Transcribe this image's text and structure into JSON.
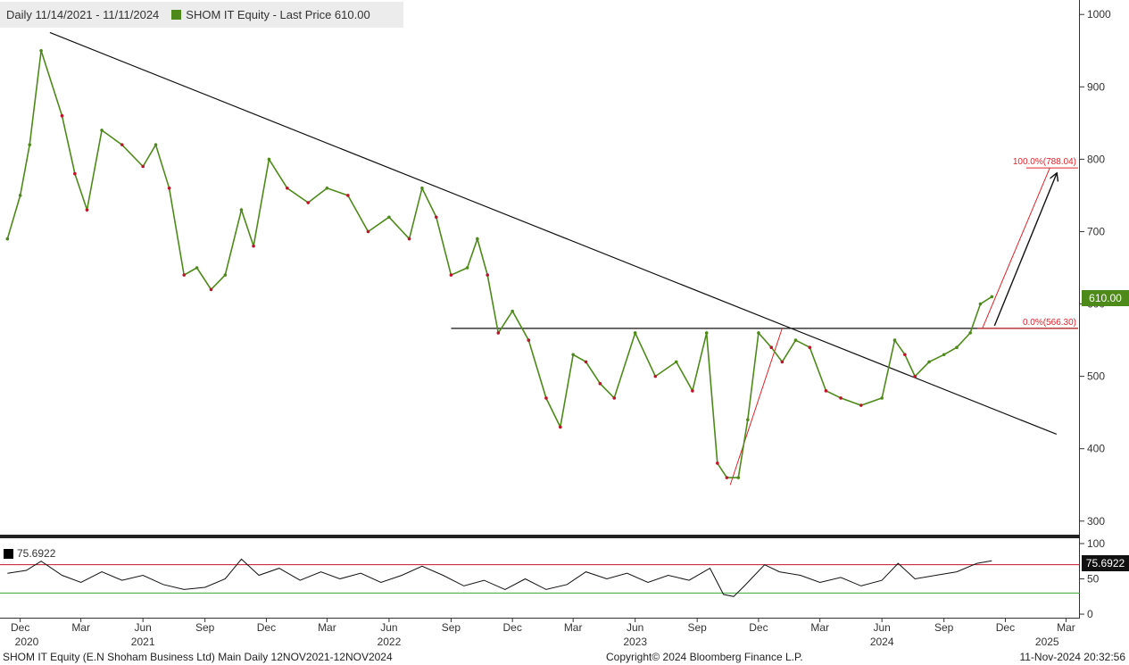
{
  "header": {
    "date_range": "Daily 11/14/2021 - 11/11/2024",
    "series_label": "SHOM IT Equity - Last Price 610.00"
  },
  "price_tag": "610.00",
  "rsi": {
    "label": "75.6922",
    "tag": "75.6922"
  },
  "footer": {
    "left": "SHOM IT Equity (E.N Shoham Business Ltd) Main  Daily 12NOV2021-12NOV2024",
    "center": "Copyright© 2024 Bloomberg Finance L.P.",
    "right": "11-Nov-2024 20:32:56"
  },
  "colors": {
    "up": "#4e8a1a",
    "down": "#c0142a",
    "fib": "#e0242a",
    "grid_axis": "#333333"
  },
  "chart_data": {
    "type": "line",
    "price_axis": {
      "ylim": [
        280,
        1020
      ],
      "ticks": [
        300,
        400,
        500,
        600,
        700,
        800,
        900,
        1000
      ]
    },
    "rsi_axis": {
      "ylim": [
        -5,
        105
      ],
      "ticks": [
        0,
        50,
        100
      ],
      "overbought": 70,
      "oversold": 30
    },
    "x_axis": {
      "months": [
        "Dec",
        "Mar",
        "Jun",
        "Sep",
        "Dec",
        "Mar",
        "Jun",
        "Sep",
        "Dec",
        "Mar",
        "Jun",
        "Sep",
        "Dec",
        "Mar",
        "Jun",
        "Sep",
        "Dec",
        "Mar"
      ],
      "years": [
        "2020",
        "2021",
        "2022",
        "2023",
        "2024",
        "2025"
      ]
    },
    "price": {
      "x": [
        "2020-11-12",
        "2020-12-01",
        "2020-12-15",
        "2021-01-01",
        "2021-02-01",
        "2021-02-20",
        "2021-03-10",
        "2021-04-01",
        "2021-05-01",
        "2021-06-01",
        "2021-06-20",
        "2021-07-10",
        "2021-08-01",
        "2021-08-20",
        "2021-09-10",
        "2021-10-01",
        "2021-10-25",
        "2021-11-12",
        "2021-12-05",
        "2022-01-01",
        "2022-02-01",
        "2022-03-01",
        "2022-04-01",
        "2022-05-01",
        "2022-06-01",
        "2022-07-01",
        "2022-07-20",
        "2022-08-10",
        "2022-09-01",
        "2022-09-25",
        "2022-10-10",
        "2022-10-25",
        "2022-11-10",
        "2022-12-01",
        "2022-12-25",
        "2023-01-20",
        "2023-02-10",
        "2023-03-01",
        "2023-03-20",
        "2023-04-10",
        "2023-05-01",
        "2023-06-01",
        "2023-07-01",
        "2023-08-01",
        "2023-08-25",
        "2023-09-15",
        "2023-10-01",
        "2023-10-15",
        "2023-11-01",
        "2023-11-15",
        "2023-12-01",
        "2023-12-20",
        "2024-01-05",
        "2024-01-25",
        "2024-02-15",
        "2024-03-10",
        "2024-04-01",
        "2024-05-01",
        "2024-06-01",
        "2024-06-20",
        "2024-07-05",
        "2024-07-20",
        "2024-08-10",
        "2024-09-01",
        "2024-09-20",
        "2024-10-10",
        "2024-10-25",
        "2024-11-11"
      ],
      "y": [
        690,
        750,
        820,
        950,
        860,
        780,
        730,
        840,
        820,
        790,
        820,
        760,
        640,
        650,
        620,
        640,
        730,
        680,
        800,
        760,
        740,
        760,
        750,
        700,
        720,
        690,
        760,
        720,
        640,
        650,
        690,
        640,
        560,
        590,
        550,
        470,
        430,
        530,
        520,
        490,
        470,
        560,
        500,
        520,
        480,
        560,
        380,
        360,
        360,
        440,
        560,
        540,
        520,
        550,
        540,
        480,
        470,
        460,
        470,
        550,
        530,
        500,
        520,
        530,
        540,
        560,
        600,
        610
      ]
    },
    "rsi": {
      "x": [
        "2020-11-12",
        "2020-12-10",
        "2021-01-01",
        "2021-02-01",
        "2021-03-01",
        "2021-04-01",
        "2021-05-01",
        "2021-06-01",
        "2021-07-01",
        "2021-08-01",
        "2021-09-01",
        "2021-10-01",
        "2021-10-25",
        "2021-11-20",
        "2021-12-20",
        "2022-01-20",
        "2022-02-20",
        "2022-03-20",
        "2022-04-20",
        "2022-05-20",
        "2022-06-20",
        "2022-07-20",
        "2022-08-20",
        "2022-09-20",
        "2022-10-20",
        "2022-11-20",
        "2022-12-20",
        "2023-01-20",
        "2023-02-20",
        "2023-03-20",
        "2023-04-20",
        "2023-05-20",
        "2023-06-20",
        "2023-07-20",
        "2023-08-20",
        "2023-09-20",
        "2023-10-10",
        "2023-10-25",
        "2023-11-10",
        "2023-11-25",
        "2023-12-10",
        "2024-01-01",
        "2024-02-01",
        "2024-03-01",
        "2024-04-01",
        "2024-05-01",
        "2024-06-01",
        "2024-06-25",
        "2024-07-20",
        "2024-08-20",
        "2024-09-20",
        "2024-10-20",
        "2024-11-11"
      ],
      "y": [
        58,
        62,
        75,
        55,
        45,
        60,
        48,
        55,
        42,
        35,
        38,
        50,
        78,
        55,
        65,
        48,
        60,
        50,
        58,
        45,
        55,
        68,
        55,
        40,
        48,
        35,
        50,
        35,
        42,
        60,
        50,
        58,
        45,
        55,
        48,
        65,
        28,
        25,
        40,
        55,
        70,
        60,
        55,
        45,
        52,
        40,
        48,
        72,
        50,
        55,
        60,
        72,
        75.69
      ]
    },
    "annotations": {
      "trendline": {
        "from": [
          "2021-01-14",
          975
        ],
        "to": [
          "2025-02-15",
          420
        ]
      },
      "resistance": {
        "y": 566.3,
        "from": "2022-09-01",
        "to": "2025-03-01"
      },
      "fib_levels": [
        {
          "label": "0.0%(566.30)",
          "value": 566.3
        },
        {
          "label": "100.0%(788.04)",
          "value": 788.04
        }
      ],
      "fib_swing": {
        "from": [
          "2023-10-20",
          350
        ],
        "to": [
          "2024-01-05",
          566.3
        ]
      },
      "projection": {
        "from": [
          "2024-10-28",
          566.3
        ],
        "to": [
          "2025-02-05",
          788.04
        ]
      },
      "arrow": {
        "from": [
          "2024-11-15",
          570
        ],
        "to": [
          "2025-02-15",
          780
        ]
      }
    }
  }
}
